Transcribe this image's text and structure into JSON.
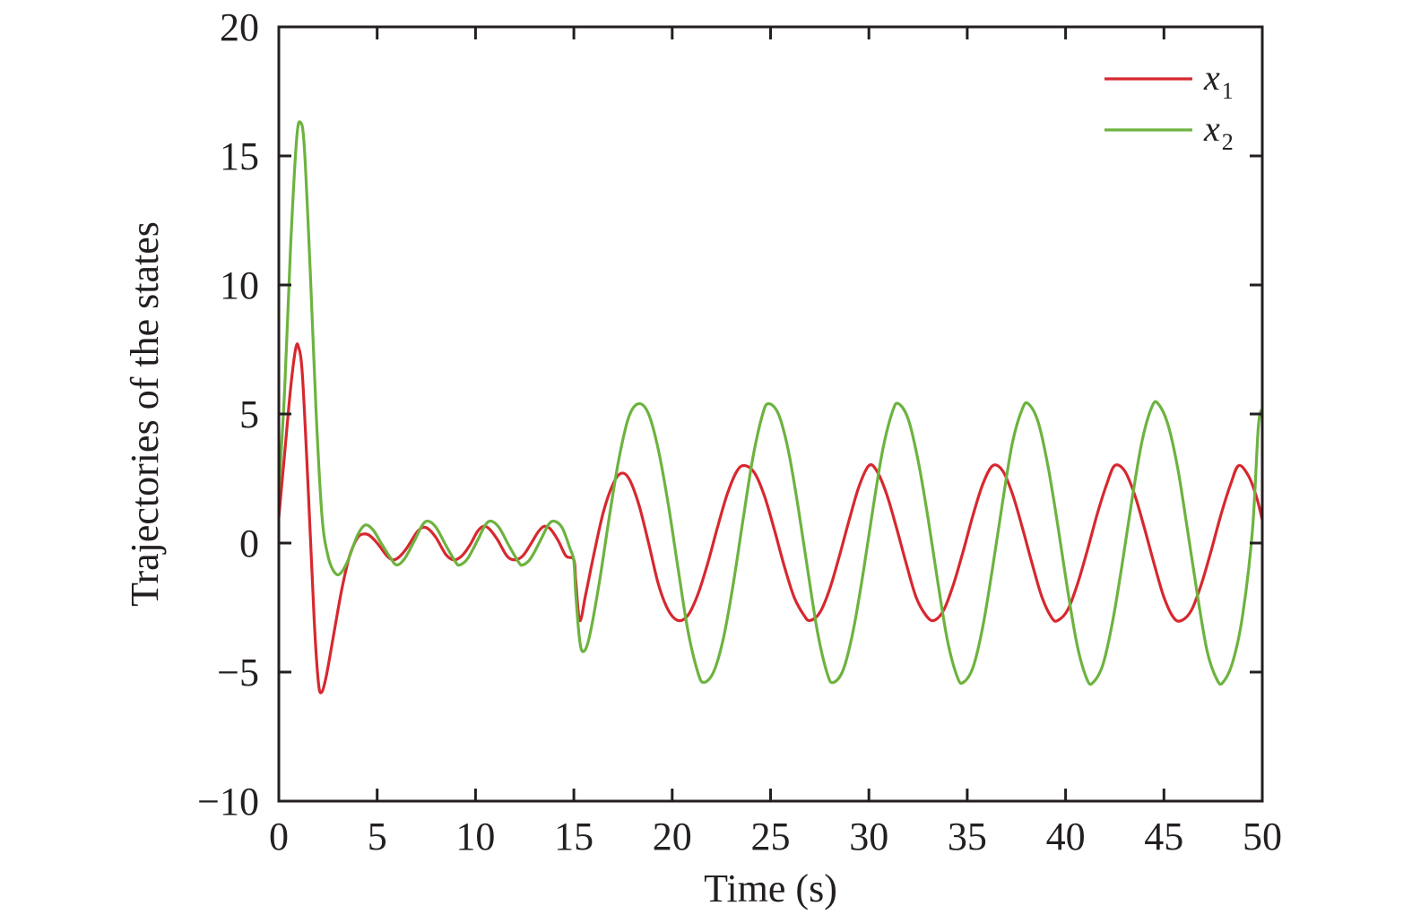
{
  "chart_data": {
    "type": "line",
    "title": "",
    "xlabel": "Time (s)",
    "ylabel": "Trajectories of the states",
    "xlim": [
      0,
      50
    ],
    "ylim": [
      -10,
      20
    ],
    "xticks": [
      0,
      5,
      10,
      15,
      20,
      25,
      30,
      35,
      40,
      45,
      50
    ],
    "yticks": [
      -10,
      -5,
      0,
      5,
      10,
      15,
      20
    ],
    "xtick_labels": [
      "0",
      "5",
      "10",
      "15",
      "20",
      "25",
      "30",
      "35",
      "40",
      "45",
      "50"
    ],
    "ytick_labels": [
      "−10",
      "−5",
      "0",
      "5",
      "10",
      "15",
      "20"
    ],
    "grid": false,
    "legend_position": "top-right",
    "series": [
      {
        "name": "x1",
        "label_base": "x",
        "label_sub": "1",
        "color": "#d7282f",
        "points": [
          [
            0,
            1.0
          ],
          [
            0.3,
            3.5
          ],
          [
            0.6,
            6.0
          ],
          [
            0.85,
            7.5
          ],
          [
            1.0,
            7.6
          ],
          [
            1.2,
            6.5
          ],
          [
            1.5,
            2.0
          ],
          [
            1.8,
            -3.0
          ],
          [
            2.0,
            -5.3
          ],
          [
            2.15,
            -5.8
          ],
          [
            2.4,
            -5.2
          ],
          [
            2.8,
            -3.5
          ],
          [
            3.2,
            -1.8
          ],
          [
            3.6,
            -0.5
          ],
          [
            4.0,
            0.2
          ],
          [
            4.3,
            0.35
          ],
          [
            4.6,
            0.3
          ],
          [
            5.0,
            0.0
          ],
          [
            5.5,
            -0.5
          ],
          [
            5.8,
            -0.65
          ],
          [
            6.1,
            -0.55
          ],
          [
            6.5,
            -0.2
          ],
          [
            7.0,
            0.4
          ],
          [
            7.3,
            0.6
          ],
          [
            7.6,
            0.55
          ],
          [
            8.0,
            0.2
          ],
          [
            8.5,
            -0.45
          ],
          [
            8.9,
            -0.65
          ],
          [
            9.3,
            -0.5
          ],
          [
            9.7,
            -0.1
          ],
          [
            10.1,
            0.45
          ],
          [
            10.4,
            0.65
          ],
          [
            10.7,
            0.55
          ],
          [
            11.1,
            0.15
          ],
          [
            11.6,
            -0.5
          ],
          [
            12.0,
            -0.65
          ],
          [
            12.4,
            -0.5
          ],
          [
            12.8,
            -0.05
          ],
          [
            13.2,
            0.45
          ],
          [
            13.5,
            0.65
          ],
          [
            13.8,
            0.55
          ],
          [
            14.2,
            0.1
          ],
          [
            14.6,
            -0.5
          ],
          [
            15.0,
            -0.65
          ],
          [
            15.1,
            -1.5
          ],
          [
            15.3,
            -3.0
          ],
          [
            15.6,
            -2.0
          ],
          [
            16.0,
            -0.5
          ],
          [
            16.5,
            1.2
          ],
          [
            17.0,
            2.3
          ],
          [
            17.4,
            2.7
          ],
          [
            17.8,
            2.5
          ],
          [
            18.3,
            1.5
          ],
          [
            18.8,
            0.0
          ],
          [
            19.3,
            -1.6
          ],
          [
            19.8,
            -2.6
          ],
          [
            20.3,
            -3.0
          ],
          [
            20.8,
            -2.8
          ],
          [
            21.3,
            -2.0
          ],
          [
            21.8,
            -0.8
          ],
          [
            22.3,
            0.6
          ],
          [
            22.8,
            1.9
          ],
          [
            23.3,
            2.8
          ],
          [
            23.7,
            3.0
          ],
          [
            24.2,
            2.7
          ],
          [
            24.7,
            1.8
          ],
          [
            25.2,
            0.5
          ],
          [
            25.7,
            -0.9
          ],
          [
            26.2,
            -2.1
          ],
          [
            26.7,
            -2.8
          ],
          [
            27.0,
            -3.0
          ],
          [
            27.5,
            -2.7
          ],
          [
            28.0,
            -1.8
          ],
          [
            28.5,
            -0.5
          ],
          [
            29.0,
            0.9
          ],
          [
            29.5,
            2.2
          ],
          [
            30.0,
            3.0
          ],
          [
            30.4,
            2.8
          ],
          [
            30.9,
            1.9
          ],
          [
            31.4,
            0.6
          ],
          [
            31.9,
            -0.8
          ],
          [
            32.4,
            -2.1
          ],
          [
            32.9,
            -2.8
          ],
          [
            33.3,
            -3.0
          ],
          [
            33.8,
            -2.6
          ],
          [
            34.3,
            -1.6
          ],
          [
            34.8,
            -0.3
          ],
          [
            35.3,
            1.1
          ],
          [
            35.8,
            2.3
          ],
          [
            36.3,
            3.0
          ],
          [
            36.8,
            2.8
          ],
          [
            37.3,
            1.9
          ],
          [
            37.8,
            0.6
          ],
          [
            38.3,
            -0.8
          ],
          [
            38.8,
            -2.1
          ],
          [
            39.3,
            -2.9
          ],
          [
            39.6,
            -3.0
          ],
          [
            40.1,
            -2.6
          ],
          [
            40.6,
            -1.6
          ],
          [
            41.1,
            -0.3
          ],
          [
            41.6,
            1.1
          ],
          [
            42.1,
            2.3
          ],
          [
            42.5,
            3.0
          ],
          [
            43.0,
            2.8
          ],
          [
            43.5,
            1.9
          ],
          [
            44.0,
            0.6
          ],
          [
            44.5,
            -0.8
          ],
          [
            45.0,
            -2.1
          ],
          [
            45.5,
            -2.9
          ],
          [
            45.9,
            -3.0
          ],
          [
            46.4,
            -2.6
          ],
          [
            46.9,
            -1.6
          ],
          [
            47.4,
            -0.3
          ],
          [
            47.9,
            1.1
          ],
          [
            48.4,
            2.3
          ],
          [
            48.8,
            3.0
          ],
          [
            49.3,
            2.6
          ],
          [
            49.7,
            1.8
          ],
          [
            50.0,
            0.9
          ]
        ]
      },
      {
        "name": "x2",
        "label_base": "x",
        "label_sub": "2",
        "color": "#6db33f",
        "points": [
          [
            0,
            2.0
          ],
          [
            0.3,
            6.0
          ],
          [
            0.6,
            11.5
          ],
          [
            0.9,
            15.6
          ],
          [
            1.1,
            16.3
          ],
          [
            1.3,
            15.3
          ],
          [
            1.6,
            10.5
          ],
          [
            1.9,
            5.0
          ],
          [
            2.2,
            1.0
          ],
          [
            2.5,
            -0.5
          ],
          [
            2.8,
            -1.1
          ],
          [
            3.1,
            -1.2
          ],
          [
            3.5,
            -0.7
          ],
          [
            4.0,
            0.3
          ],
          [
            4.4,
            0.7
          ],
          [
            4.8,
            0.5
          ],
          [
            5.2,
            0.0
          ],
          [
            5.7,
            -0.6
          ],
          [
            6.0,
            -0.85
          ],
          [
            6.4,
            -0.6
          ],
          [
            6.9,
            0.1
          ],
          [
            7.3,
            0.7
          ],
          [
            7.6,
            0.85
          ],
          [
            8.0,
            0.6
          ],
          [
            8.5,
            -0.1
          ],
          [
            9.0,
            -0.75
          ],
          [
            9.2,
            -0.85
          ],
          [
            9.6,
            -0.6
          ],
          [
            10.1,
            0.1
          ],
          [
            10.5,
            0.7
          ],
          [
            10.8,
            0.85
          ],
          [
            11.2,
            0.6
          ],
          [
            11.7,
            -0.1
          ],
          [
            12.2,
            -0.75
          ],
          [
            12.4,
            -0.85
          ],
          [
            12.8,
            -0.6
          ],
          [
            13.3,
            0.1
          ],
          [
            13.7,
            0.7
          ],
          [
            14.0,
            0.85
          ],
          [
            14.4,
            0.6
          ],
          [
            14.8,
            -0.2
          ],
          [
            15.0,
            -0.7
          ],
          [
            15.1,
            -2.0
          ],
          [
            15.3,
            -3.8
          ],
          [
            15.5,
            -4.2
          ],
          [
            15.8,
            -3.6
          ],
          [
            16.3,
            -1.5
          ],
          [
            16.8,
            1.0
          ],
          [
            17.3,
            3.3
          ],
          [
            17.8,
            4.9
          ],
          [
            18.3,
            5.4
          ],
          [
            18.8,
            5.0
          ],
          [
            19.3,
            3.6
          ],
          [
            19.8,
            1.5
          ],
          [
            20.3,
            -1.0
          ],
          [
            20.8,
            -3.4
          ],
          [
            21.3,
            -5.0
          ],
          [
            21.6,
            -5.4
          ],
          [
            22.1,
            -5.0
          ],
          [
            22.6,
            -3.7
          ],
          [
            23.1,
            -1.6
          ],
          [
            23.6,
            0.9
          ],
          [
            24.1,
            3.3
          ],
          [
            24.6,
            5.0
          ],
          [
            24.9,
            5.4
          ],
          [
            25.4,
            5.0
          ],
          [
            25.9,
            3.6
          ],
          [
            26.4,
            1.4
          ],
          [
            26.9,
            -1.1
          ],
          [
            27.4,
            -3.5
          ],
          [
            27.9,
            -5.1
          ],
          [
            28.2,
            -5.4
          ],
          [
            28.7,
            -4.9
          ],
          [
            29.2,
            -3.4
          ],
          [
            29.7,
            -1.2
          ],
          [
            30.2,
            1.3
          ],
          [
            30.7,
            3.6
          ],
          [
            31.2,
            5.1
          ],
          [
            31.5,
            5.4
          ],
          [
            32.0,
            4.8
          ],
          [
            32.5,
            3.2
          ],
          [
            33.0,
            1.0
          ],
          [
            33.5,
            -1.5
          ],
          [
            34.0,
            -3.8
          ],
          [
            34.5,
            -5.2
          ],
          [
            34.8,
            -5.4
          ],
          [
            35.3,
            -4.8
          ],
          [
            35.8,
            -3.2
          ],
          [
            36.3,
            -0.9
          ],
          [
            36.8,
            1.6
          ],
          [
            37.3,
            3.9
          ],
          [
            37.8,
            5.2
          ],
          [
            38.1,
            5.4
          ],
          [
            38.6,
            4.7
          ],
          [
            39.1,
            3.0
          ],
          [
            39.6,
            0.7
          ],
          [
            40.1,
            -1.8
          ],
          [
            40.6,
            -4.0
          ],
          [
            41.1,
            -5.3
          ],
          [
            41.4,
            -5.4
          ],
          [
            41.9,
            -4.7
          ],
          [
            42.4,
            -3.0
          ],
          [
            42.9,
            -0.7
          ],
          [
            43.4,
            1.8
          ],
          [
            43.9,
            4.0
          ],
          [
            44.4,
            5.3
          ],
          [
            44.7,
            5.4
          ],
          [
            45.2,
            4.6
          ],
          [
            45.7,
            2.9
          ],
          [
            46.2,
            0.5
          ],
          [
            46.7,
            -2.0
          ],
          [
            47.2,
            -4.2
          ],
          [
            47.7,
            -5.3
          ],
          [
            48.0,
            -5.4
          ],
          [
            48.5,
            -4.6
          ],
          [
            49.0,
            -2.8
          ],
          [
            49.5,
            0.5
          ],
          [
            49.8,
            4.5
          ],
          [
            50.0,
            5.2
          ]
        ]
      }
    ]
  }
}
